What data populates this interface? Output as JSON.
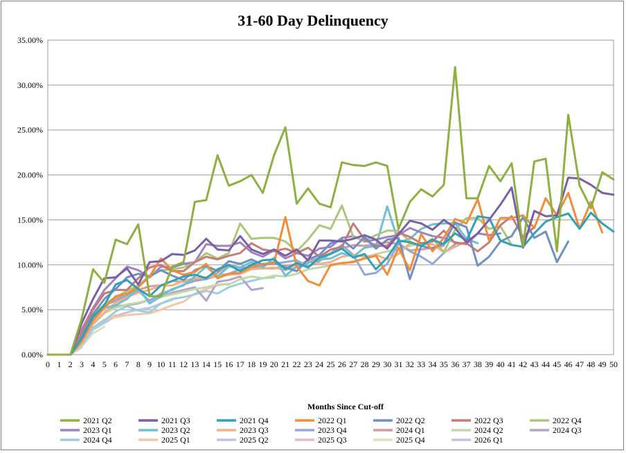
{
  "chart_data": {
    "type": "line",
    "title": "31-60 Day Delinquency",
    "xlabel": "Months Since Cut-off",
    "ylabel": "",
    "xlim": [
      0,
      50
    ],
    "ylim": [
      0,
      0.35
    ],
    "y_ticks": [
      "0.00%",
      "5.00%",
      "10.00%",
      "15.00%",
      "20.00%",
      "25.00%",
      "30.00%",
      "35.00%"
    ],
    "x_ticks": [
      "0",
      "1",
      "2",
      "3",
      "4",
      "5",
      "6",
      "7",
      "8",
      "9",
      "10",
      "11",
      "12",
      "13",
      "14",
      "15",
      "16",
      "17",
      "18",
      "19",
      "20",
      "21",
      "22",
      "23",
      "24",
      "25",
      "26",
      "27",
      "28",
      "29",
      "30",
      "31",
      "32",
      "33",
      "34",
      "35",
      "36",
      "37",
      "38",
      "39",
      "40",
      "41",
      "42",
      "43",
      "44",
      "45",
      "46",
      "47",
      "48",
      "49",
      "50"
    ],
    "grid": true,
    "legend_position": "bottom",
    "series": [
      {
        "name": "2021 Q2",
        "color": "#8DB040",
        "values": [
          0,
          0,
          0,
          0.04,
          0.095,
          0.08,
          0.128,
          0.123,
          0.145,
          0.065,
          0.065,
          0.098,
          0.103,
          0.17,
          0.172,
          0.222,
          0.188,
          0.193,
          0.2,
          0.18,
          0.222,
          0.253,
          0.168,
          0.185,
          0.168,
          0.164,
          0.214,
          0.211,
          0.21,
          0.214,
          0.21,
          0.14,
          0.17,
          0.184,
          0.176,
          0.189,
          0.32,
          0.174,
          0.174,
          0.21,
          0.193,
          0.213,
          0.12,
          0.215,
          0.218,
          0.115,
          0.267,
          0.188,
          0.163,
          0.203,
          0.195
        ]
      },
      {
        "name": "2021 Q3",
        "color": "#7B5EA7",
        "values": [
          0,
          0,
          0,
          0.035,
          0.062,
          0.085,
          0.086,
          0.096,
          0.078,
          0.103,
          0.104,
          0.112,
          0.111,
          0.116,
          0.129,
          0.117,
          0.116,
          0.132,
          0.117,
          0.112,
          0.117,
          0.11,
          0.117,
          0.105,
          0.127,
          0.127,
          0.126,
          0.129,
          0.133,
          0.128,
          0.118,
          0.134,
          0.149,
          0.146,
          0.139,
          0.15,
          0.141,
          0.125,
          0.135,
          0.15,
          0.167,
          0.186,
          0.119,
          0.16,
          0.154,
          0.155,
          0.197,
          0.196,
          0.189,
          0.18,
          0.178
        ]
      },
      {
        "name": "2021 Q4",
        "color": "#31A2B6",
        "values": [
          0,
          0,
          0,
          0.018,
          0.042,
          0.055,
          0.078,
          0.083,
          0.073,
          0.065,
          0.077,
          0.082,
          0.087,
          0.089,
          0.085,
          0.095,
          0.1,
          0.093,
          0.1,
          0.105,
          0.106,
          0.095,
          0.102,
          0.097,
          0.108,
          0.112,
          0.118,
          0.108,
          0.112,
          0.095,
          0.108,
          0.127,
          0.125,
          0.121,
          0.128,
          0.123,
          0.135,
          0.127,
          0.154,
          0.152,
          0.127,
          0.122,
          0.12,
          0.135,
          0.148,
          0.153,
          0.157,
          0.14,
          0.158,
          0.146,
          0.137
        ]
      },
      {
        "name": "2022 Q1",
        "color": "#F28C38",
        "values": [
          0,
          0,
          0,
          0.015,
          0.038,
          0.052,
          0.065,
          0.068,
          0.075,
          0.087,
          0.107,
          0.094,
          0.089,
          0.092,
          0.101,
          0.085,
          0.09,
          0.091,
          0.098,
          0.101,
          0.102,
          0.153,
          0.098,
          0.082,
          0.077,
          0.1,
          0.102,
          0.103,
          0.107,
          0.11,
          0.089,
          0.119,
          0.094,
          0.134,
          0.115,
          0.13,
          0.151,
          0.146,
          0.173,
          0.127,
          0.152,
          0.152,
          0.155,
          0.141,
          0.174,
          0.155,
          0.18,
          0.14,
          0.17,
          0.136,
          null
        ]
      },
      {
        "name": "2022 Q2",
        "color": "#6F8FC6",
        "values": [
          0,
          0,
          0,
          0.02,
          0.045,
          0.062,
          0.073,
          0.086,
          0.09,
          0.087,
          0.094,
          0.088,
          0.083,
          0.094,
          0.099,
          0.093,
          0.104,
          0.101,
          0.106,
          0.1,
          0.103,
          0.097,
          0.093,
          0.106,
          0.111,
          0.124,
          0.128,
          0.118,
          0.131,
          0.118,
          0.128,
          0.13,
          0.084,
          0.121,
          0.118,
          0.124,
          0.147,
          0.142,
          0.099,
          0.109,
          0.126,
          0.132,
          0.153,
          0.13,
          0.137,
          0.103,
          0.126,
          null,
          null,
          null,
          null
        ]
      },
      {
        "name": "2022 Q3",
        "color": "#C77B76",
        "values": [
          0,
          0,
          0,
          0.025,
          0.05,
          0.068,
          0.072,
          0.072,
          0.085,
          0.097,
          0.1,
          0.093,
          0.093,
          0.103,
          0.109,
          0.106,
          0.11,
          0.113,
          0.124,
          0.117,
          0.115,
          0.118,
          0.113,
          0.119,
          0.109,
          0.117,
          0.12,
          0.146,
          0.128,
          0.121,
          0.121,
          0.136,
          0.131,
          0.124,
          0.126,
          0.138,
          0.124,
          0.124,
          0.115,
          0.125,
          0.144,
          0.154,
          0.131,
          0.142,
          null,
          null,
          null,
          null,
          null,
          null,
          null
        ]
      },
      {
        "name": "2022 Q4",
        "color": "#A9C879",
        "values": [
          0,
          0,
          0,
          0.022,
          0.044,
          0.056,
          0.064,
          0.071,
          0.077,
          0.088,
          0.094,
          0.095,
          0.097,
          0.103,
          0.113,
          0.107,
          0.113,
          0.146,
          0.129,
          0.13,
          0.13,
          0.126,
          0.115,
          0.128,
          0.144,
          0.14,
          0.166,
          0.131,
          0.127,
          0.133,
          0.138,
          0.138,
          0.126,
          0.121,
          0.129,
          0.114,
          0.139,
          0.152,
          0.152,
          0.14,
          0.143,
          0.122,
          null,
          null,
          null,
          null,
          null,
          null,
          null,
          null,
          null
        ]
      },
      {
        "name": "2023 Q1",
        "color": "#9C84BF",
        "values": [
          0,
          0,
          0,
          0.028,
          0.052,
          0.072,
          0.085,
          0.098,
          0.094,
          0.086,
          0.098,
          0.097,
          0.101,
          0.103,
          0.123,
          0.121,
          0.121,
          0.125,
          0.114,
          0.109,
          0.116,
          0.107,
          0.113,
          0.11,
          0.118,
          0.12,
          0.13,
          0.132,
          0.126,
          0.128,
          0.131,
          0.133,
          0.141,
          0.136,
          0.132,
          0.13,
          0.125,
          0.123,
          0.135,
          0.133,
          0.135,
          null,
          null,
          null,
          null,
          null,
          null,
          null,
          null,
          null,
          null
        ]
      },
      {
        "name": "2023 Q2",
        "color": "#6FC1CF",
        "values": [
          0,
          0,
          0,
          0.016,
          0.04,
          0.052,
          0.055,
          0.062,
          0.074,
          0.057,
          0.065,
          0.073,
          0.077,
          0.087,
          0.098,
          0.087,
          0.098,
          0.097,
          0.103,
          0.097,
          0.108,
          0.088,
          0.098,
          0.102,
          0.106,
          0.107,
          0.113,
          0.109,
          0.119,
          0.121,
          0.165,
          0.125,
          0.129,
          0.14,
          0.145,
          0.146,
          0.146,
          0.129,
          0.124,
          null,
          null,
          null,
          null,
          null,
          null,
          null,
          null,
          null,
          null,
          null,
          null
        ]
      },
      {
        "name": "2023 Q3",
        "color": "#F4B082",
        "values": [
          0,
          0,
          0,
          0.013,
          0.035,
          0.047,
          0.058,
          0.064,
          0.069,
          0.072,
          0.077,
          0.077,
          0.082,
          0.085,
          0.086,
          0.087,
          0.089,
          0.09,
          0.095,
          0.096,
          0.097,
          0.094,
          0.098,
          0.105,
          0.101,
          0.103,
          0.109,
          0.111,
          0.109,
          0.111,
          0.106,
          0.112,
          0.124,
          0.123,
          0.123,
          0.114,
          0.12,
          0.126,
          null,
          null,
          null,
          null,
          null,
          null,
          null,
          null,
          null,
          null,
          null,
          null,
          null
        ]
      },
      {
        "name": "2023 Q4",
        "color": "#91A9D8",
        "values": [
          0,
          0,
          0,
          0.019,
          0.04,
          0.055,
          0.06,
          0.066,
          0.071,
          0.06,
          0.068,
          0.072,
          0.078,
          0.082,
          0.084,
          0.088,
          0.09,
          0.095,
          0.097,
          0.1,
          0.101,
          0.103,
          0.105,
          0.098,
          0.104,
          0.113,
          0.122,
          0.111,
          0.089,
          0.091,
          0.101,
          0.124,
          0.115,
          0.109,
          0.101,
          0.113,
          0.123,
          null,
          null,
          null,
          null,
          null,
          null,
          null,
          null,
          null,
          null,
          null,
          null,
          null,
          null
        ]
      },
      {
        "name": "2024 Q1",
        "color": "#D69A98",
        "values": [
          0,
          0,
          0,
          0.02,
          0.042,
          0.056,
          0.062,
          0.068,
          0.072,
          0.076,
          0.077,
          0.082,
          0.081,
          0.084,
          0.086,
          0.091,
          0.1,
          0.097,
          0.097,
          0.096,
          0.096,
          0.099,
          0.1,
          0.104,
          0.108,
          0.113,
          0.118,
          0.122,
          0.121,
          0.123,
          0.125,
          0.123,
          0.116,
          0.117,
          0.119,
          0.121,
          null,
          null,
          null,
          null,
          null,
          null,
          null,
          null,
          null,
          null,
          null,
          null,
          null,
          null,
          null
        ]
      },
      {
        "name": "2024 Q2",
        "color": "#C3D9A3",
        "values": [
          0,
          0,
          0,
          0.016,
          0.035,
          0.046,
          0.052,
          0.056,
          0.058,
          0.061,
          0.064,
          0.067,
          0.07,
          0.073,
          0.075,
          0.078,
          0.078,
          0.084,
          0.087,
          0.085,
          0.088,
          0.087,
          0.09,
          0.095,
          0.097,
          0.099,
          0.101,
          0.104,
          0.107,
          0.112,
          0.115,
          0.118,
          0.121,
          0.124,
          0.126,
          null,
          null,
          null,
          null,
          null,
          null,
          null,
          null,
          null,
          null,
          null,
          null,
          null,
          null,
          null,
          null
        ]
      },
      {
        "name": "2024 Q3",
        "color": "#B4A3CE",
        "values": [
          0,
          0,
          0,
          0.015,
          0.034,
          0.046,
          0.054,
          0.055,
          0.057,
          0.061,
          0.064,
          0.069,
          0.072,
          0.075,
          0.06,
          0.081,
          0.083,
          0.087,
          0.072,
          0.074,
          null,
          null,
          null,
          null,
          null,
          null,
          null,
          null,
          null,
          null,
          null,
          null,
          null,
          null,
          null,
          null,
          null,
          null,
          null,
          null,
          null,
          null,
          null,
          null,
          null,
          null,
          null,
          null,
          null,
          null,
          null
        ]
      },
      {
        "name": "2024 Q4",
        "color": "#9CCFDC",
        "values": [
          0,
          0,
          0,
          0.012,
          0.03,
          0.038,
          0.048,
          0.054,
          0.049,
          0.047,
          0.057,
          0.062,
          0.064,
          0.067,
          0.071,
          0.068,
          0.075,
          0.079,
          0.082,
          0.085,
          0.086,
          null,
          null,
          null,
          null,
          null,
          null,
          null,
          null,
          null,
          null,
          null,
          null,
          null,
          null,
          null,
          null,
          null,
          null,
          null,
          null,
          null,
          null,
          null,
          null,
          null,
          null,
          null,
          null,
          null,
          null
        ]
      },
      {
        "name": "2025 Q1",
        "color": "#F7C5A3",
        "values": [
          0,
          0,
          0,
          0.011,
          0.03,
          0.039,
          0.042,
          0.044,
          0.045,
          0.046,
          0.05,
          0.055,
          0.059,
          0.068,
          0.073,
          0.077,
          0.079,
          null,
          null,
          null,
          null,
          null,
          null,
          null,
          null,
          null,
          null,
          null,
          null,
          null,
          null,
          null,
          null,
          null,
          null,
          null,
          null,
          null,
          null,
          null,
          null,
          null,
          null,
          null,
          null,
          null,
          null,
          null,
          null,
          null,
          null
        ]
      },
      {
        "name": "2025 Q2",
        "color": "#B8C7E4",
        "values": [
          0,
          0,
          0,
          0.01,
          0.028,
          0.035,
          0.043,
          0.047,
          0.05,
          0.052,
          0.057,
          0.061,
          null,
          null,
          null,
          null,
          null,
          null,
          null,
          null,
          null,
          null,
          null,
          null,
          null,
          null,
          null,
          null,
          null,
          null,
          null,
          null,
          null,
          null,
          null,
          null,
          null,
          null,
          null,
          null,
          null,
          null,
          null,
          null,
          null,
          null,
          null,
          null,
          null,
          null,
          null
        ]
      },
      {
        "name": "2025 Q3",
        "color": "#E3BDBB",
        "values": [
          0,
          0,
          0,
          0.011,
          0.029,
          0.037,
          0.044,
          null,
          null,
          null,
          null,
          null,
          null,
          null,
          null,
          null,
          null,
          null,
          null,
          null,
          null,
          null,
          null,
          null,
          null,
          null,
          null,
          null,
          null,
          null,
          null,
          null,
          null,
          null,
          null,
          null,
          null,
          null,
          null,
          null,
          null,
          null,
          null,
          null,
          null,
          null,
          null,
          null,
          null,
          null,
          null
        ]
      },
      {
        "name": "2025 Q4",
        "color": "#D5E3C1",
        "values": [
          0,
          0,
          0,
          0.009,
          0.024,
          0.031,
          null,
          null,
          null,
          null,
          null,
          null,
          null,
          null,
          null,
          null,
          null,
          null,
          null,
          null,
          null,
          null,
          null,
          null,
          null,
          null,
          null,
          null,
          null,
          null,
          null,
          null,
          null,
          null,
          null,
          null,
          null,
          null,
          null,
          null,
          null,
          null,
          null,
          null,
          null,
          null,
          null,
          null,
          null,
          null,
          null
        ]
      },
      {
        "name": "2026 Q1",
        "color": "#CBBFDD",
        "values": [
          0,
          0,
          0,
          0.008,
          null,
          null,
          null,
          null,
          null,
          null,
          null,
          null,
          null,
          null,
          null,
          null,
          null,
          null,
          null,
          null,
          null,
          null,
          null,
          null,
          null,
          null,
          null,
          null,
          null,
          null,
          null,
          null,
          null,
          null,
          null,
          null,
          null,
          null,
          null,
          null,
          null,
          null,
          null,
          null,
          null,
          null,
          null,
          null,
          null,
          null,
          null
        ]
      }
    ]
  }
}
